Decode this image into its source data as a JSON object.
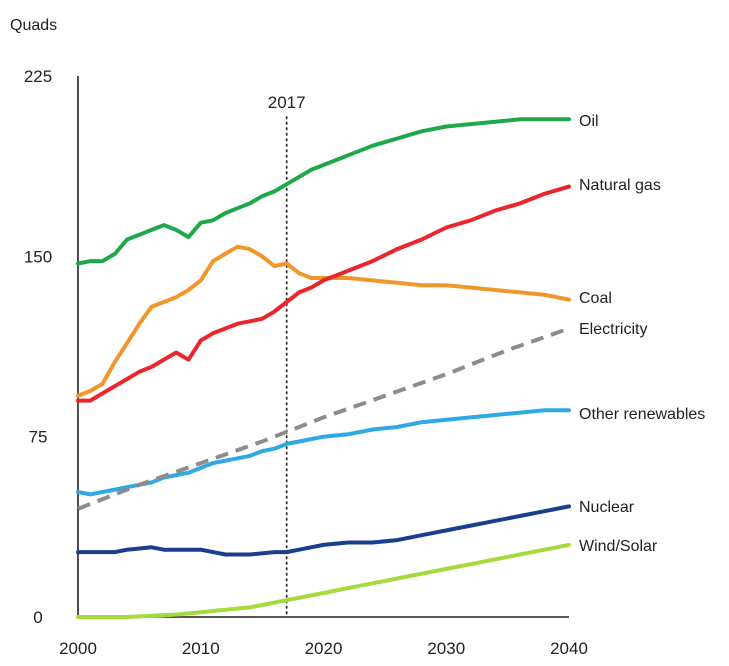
{
  "chart_data": {
    "type": "line",
    "ylabel": "Quads",
    "xlim": [
      2000,
      2040
    ],
    "ylim": [
      0,
      225
    ],
    "xticks": [
      2000,
      2010,
      2020,
      2030,
      2040
    ],
    "yticks": [
      0,
      75,
      150,
      225
    ],
    "grid": false,
    "legend": "inline-right",
    "marker": {
      "x": 2017,
      "label": "2017"
    },
    "series": [
      {
        "name": "Oil",
        "color": "#1fa84a",
        "dash": false,
        "x": [
          2000,
          2001,
          2002,
          2003,
          2004,
          2005,
          2006,
          2007,
          2008,
          2009,
          2010,
          2011,
          2012,
          2013,
          2014,
          2015,
          2016,
          2017,
          2018,
          2019,
          2020,
          2022,
          2024,
          2026,
          2028,
          2030,
          2032,
          2034,
          2036,
          2038,
          2040
        ],
        "y": [
          147,
          148,
          148,
          151,
          157,
          159,
          161,
          163,
          161,
          158,
          164,
          165,
          168,
          170,
          172,
          175,
          177,
          180,
          183,
          186,
          188,
          192,
          196,
          199,
          202,
          204,
          205,
          206,
          207,
          207,
          207
        ]
      },
      {
        "name": "Natural gas",
        "color": "#e8262c",
        "dash": false,
        "x": [
          2000,
          2001,
          2002,
          2003,
          2004,
          2005,
          2006,
          2007,
          2008,
          2009,
          2010,
          2011,
          2012,
          2013,
          2014,
          2015,
          2016,
          2017,
          2018,
          2019,
          2020,
          2022,
          2024,
          2026,
          2028,
          2030,
          2032,
          2034,
          2036,
          2038,
          2040
        ],
        "y": [
          90,
          90,
          93,
          96,
          99,
          102,
          104,
          107,
          110,
          107,
          115,
          118,
          120,
          122,
          123,
          124,
          127,
          131,
          135,
          137,
          140,
          144,
          148,
          153,
          157,
          162,
          165,
          169,
          172,
          176,
          179
        ]
      },
      {
        "name": "Coal",
        "color": "#f0962a",
        "dash": false,
        "x": [
          2000,
          2001,
          2002,
          2003,
          2004,
          2005,
          2006,
          2007,
          2008,
          2009,
          2010,
          2011,
          2012,
          2013,
          2014,
          2015,
          2016,
          2017,
          2018,
          2019,
          2020,
          2022,
          2024,
          2026,
          2028,
          2030,
          2032,
          2034,
          2036,
          2038,
          2040
        ],
        "y": [
          92,
          94,
          97,
          106,
          114,
          122,
          129,
          131,
          133,
          136,
          140,
          148,
          151,
          154,
          153,
          150,
          146,
          147,
          143,
          141,
          141,
          141,
          140,
          139,
          138,
          138,
          137,
          136,
          135,
          134,
          132
        ]
      },
      {
        "name": "Electricity",
        "color": "#8c8c8c",
        "dash": true,
        "x": [
          2000,
          2005,
          2010,
          2015,
          2017,
          2020,
          2025,
          2030,
          2035,
          2040
        ],
        "y": [
          45,
          55,
          64,
          73,
          77,
          83,
          92,
          101,
          111,
          120
        ]
      },
      {
        "name": "Other renewables",
        "color": "#2fa9e1",
        "dash": false,
        "x": [
          2000,
          2001,
          2002,
          2003,
          2004,
          2005,
          2006,
          2007,
          2008,
          2009,
          2010,
          2011,
          2012,
          2013,
          2014,
          2015,
          2016,
          2017,
          2018,
          2020,
          2022,
          2024,
          2026,
          2028,
          2030,
          2032,
          2034,
          2036,
          2038,
          2040
        ],
        "y": [
          52,
          51,
          52,
          53,
          54,
          55,
          56,
          58,
          59,
          60,
          62,
          64,
          65,
          66,
          67,
          69,
          70,
          72,
          73,
          75,
          76,
          78,
          79,
          81,
          82,
          83,
          84,
          85,
          86,
          86
        ]
      },
      {
        "name": "Nuclear",
        "color": "#1a3e8f",
        "dash": false,
        "x": [
          2000,
          2002,
          2003,
          2004,
          2006,
          2007,
          2008,
          2009,
          2010,
          2011,
          2012,
          2013,
          2014,
          2016,
          2017,
          2018,
          2019,
          2020,
          2022,
          2024,
          2026,
          2028,
          2030,
          2032,
          2034,
          2036,
          2038,
          2040
        ],
        "y": [
          27,
          27,
          27,
          28,
          29,
          28,
          28,
          28,
          28,
          27,
          26,
          26,
          26,
          27,
          27,
          28,
          29,
          30,
          31,
          31,
          32,
          34,
          36,
          38,
          40,
          42,
          44,
          46
        ]
      },
      {
        "name": "Wind/Solar",
        "color": "#a6d93c",
        "dash": false,
        "x": [
          2000,
          2004,
          2006,
          2008,
          2010,
          2012,
          2014,
          2016,
          2017,
          2018,
          2020,
          2022,
          2024,
          2026,
          2028,
          2030,
          2032,
          2034,
          2036,
          2038,
          2040
        ],
        "y": [
          0,
          0,
          0.5,
          1,
          2,
          3,
          4,
          6,
          7,
          8,
          10,
          12,
          14,
          16,
          18,
          20,
          22,
          24,
          26,
          28,
          30
        ]
      }
    ]
  }
}
